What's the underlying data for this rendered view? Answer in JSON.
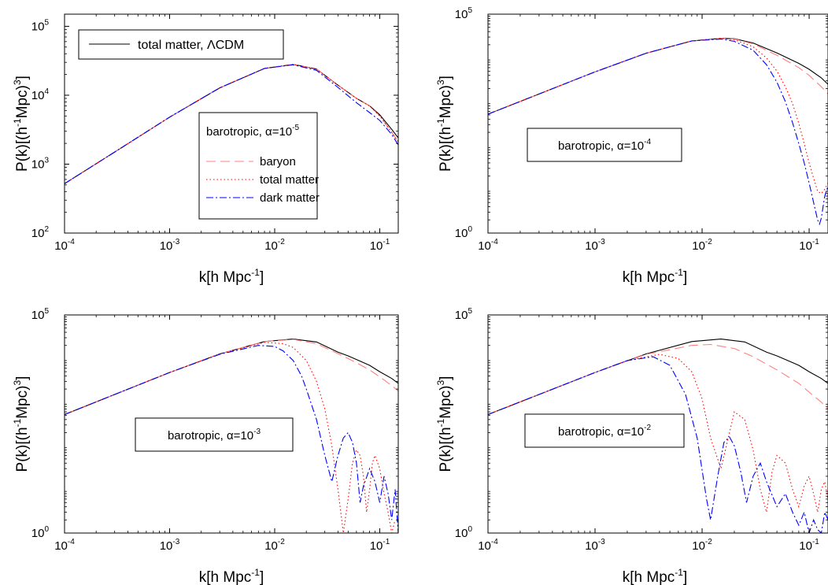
{
  "chart_data": [
    {
      "type": "line",
      "xscale": "log",
      "yscale": "log",
      "xlim": [
        0.0001,
        0.15
      ],
      "ylim": [
        100,
        150000
      ],
      "xlabel": "k[h Mpc",
      "xlabel_sup": "-1",
      "xlabel_end": "]",
      "ylabel": "P(k)[(h",
      "ylabel_sup1": "-1",
      "ylabel_mid": "Mpc)",
      "ylabel_sup2": "3",
      "ylabel_end": "]",
      "xticks": [
        {
          "base": "10",
          "exp": "-4",
          "value": 0.0001
        },
        {
          "base": "10",
          "exp": "-3",
          "value": 0.001
        },
        {
          "base": "10",
          "exp": "-2",
          "value": 0.01
        },
        {
          "base": "10",
          "exp": "-1",
          "value": 0.1
        }
      ],
      "yticks": [
        {
          "base": "10",
          "exp": "2",
          "value": 100
        },
        {
          "base": "10",
          "exp": "3",
          "value": 1000
        },
        {
          "base": "10",
          "exp": "4",
          "value": 10000
        },
        {
          "base": "10",
          "exp": "5",
          "value": 100000
        }
      ],
      "legend_top": {
        "label": "total matter, ΛCDM",
        "placement": "top-left"
      },
      "legend": {
        "title": "barotropic, α=10",
        "title_exp": "-5",
        "placement": "center-right",
        "entries": [
          "baryon",
          "total matter",
          "dark matter"
        ]
      },
      "series": [
        {
          "name": "total matter, ΛCDM",
          "color": "#000000",
          "dash": "solid",
          "x": [
            0.0001,
            0.0003,
            0.001,
            0.003,
            0.008,
            0.015,
            0.025,
            0.04,
            0.05,
            0.06,
            0.08,
            0.1,
            0.13,
            0.15
          ],
          "y": [
            520,
            1500,
            4800,
            12800,
            24500,
            28000,
            24000,
            14000,
            11000,
            9000,
            7000,
            5200,
            3200,
            2400
          ]
        },
        {
          "name": "baryon",
          "color": "#ff8080",
          "dash": "long-dash",
          "x": [
            0.0001,
            0.0003,
            0.001,
            0.003,
            0.008,
            0.015,
            0.025,
            0.04,
            0.05,
            0.06,
            0.08,
            0.1,
            0.13,
            0.15
          ],
          "y": [
            520,
            1500,
            4800,
            12800,
            24500,
            28000,
            24000,
            14000,
            11000,
            9000,
            7000,
            5000,
            2900,
            2100
          ]
        },
        {
          "name": "total matter",
          "color": "#ff0000",
          "dash": "dotted",
          "x": [
            0.0001,
            0.0003,
            0.001,
            0.003,
            0.008,
            0.015,
            0.025,
            0.04,
            0.05,
            0.06,
            0.08,
            0.1,
            0.13,
            0.15
          ],
          "y": [
            520,
            1500,
            4800,
            12800,
            24500,
            28000,
            24000,
            14000,
            11000,
            9000,
            7000,
            5000,
            2900,
            2100
          ]
        },
        {
          "name": "dark matter",
          "color": "#0000ff",
          "dash": "dash-dot",
          "x": [
            0.0001,
            0.0003,
            0.001,
            0.003,
            0.008,
            0.015,
            0.025,
            0.04,
            0.05,
            0.06,
            0.08,
            0.1,
            0.13,
            0.15
          ],
          "y": [
            520,
            1500,
            4800,
            12800,
            24500,
            27600,
            23000,
            13000,
            9800,
            7800,
            5600,
            4300,
            2700,
            1900
          ]
        }
      ]
    },
    {
      "type": "line",
      "xscale": "log",
      "yscale": "log",
      "xlim": [
        0.0001,
        0.15
      ],
      "ylim": [
        1,
        100000
      ],
      "xlabel": "k[h Mpc",
      "xlabel_sup": "-1",
      "xlabel_end": "]",
      "ylabel": "P(k)[(h",
      "ylabel_sup1": "-1",
      "ylabel_mid": "Mpc)",
      "ylabel_sup2": "3",
      "ylabel_end": "]",
      "xticks": [
        {
          "base": "10",
          "exp": "-4",
          "value": 0.0001
        },
        {
          "base": "10",
          "exp": "-3",
          "value": 0.001
        },
        {
          "base": "10",
          "exp": "-2",
          "value": 0.01
        },
        {
          "base": "10",
          "exp": "-1",
          "value": 0.1
        }
      ],
      "yticks": [
        {
          "base": "10",
          "exp": "0",
          "value": 1
        },
        {
          "base": "10",
          "exp": "5",
          "value": 100000
        }
      ],
      "legend": {
        "title": "barotropic, α=10",
        "title_exp": "-4",
        "placement": "center"
      },
      "series": [
        {
          "color": "#000000",
          "dash": "solid",
          "x": [
            0.0001,
            0.001,
            0.003,
            0.008,
            0.015,
            0.02,
            0.03,
            0.05,
            0.08,
            0.1,
            0.13,
            0.15
          ],
          "y": [
            520,
            4800,
            12800,
            24500,
            28000,
            27500,
            22000,
            13000,
            7500,
            5500,
            3500,
            2500
          ]
        },
        {
          "color": "#ff8080",
          "dash": "long-dash",
          "x": [
            0.0001,
            0.001,
            0.003,
            0.008,
            0.015,
            0.02,
            0.03,
            0.05,
            0.08,
            0.1,
            0.13,
            0.15
          ],
          "y": [
            520,
            4800,
            12800,
            24500,
            28000,
            27000,
            21000,
            11500,
            6000,
            4000,
            2200,
            1500
          ]
        },
        {
          "color": "#ff0000",
          "dash": "dotted",
          "x": [
            0.0001,
            0.001,
            0.003,
            0.008,
            0.015,
            0.02,
            0.03,
            0.04,
            0.05,
            0.06,
            0.07,
            0.08,
            0.09,
            0.1,
            0.11,
            0.12,
            0.13,
            0.14,
            0.15
          ],
          "y": [
            520,
            4800,
            12800,
            24500,
            28000,
            26000,
            18000,
            10000,
            5000,
            2200,
            900,
            320,
            110,
            40,
            18,
            9,
            8,
            10,
            14
          ]
        },
        {
          "color": "#0000ff",
          "dash": "dash-dot",
          "x": [
            0.0001,
            0.001,
            0.003,
            0.008,
            0.015,
            0.02,
            0.03,
            0.04,
            0.05,
            0.06,
            0.07,
            0.08,
            0.09,
            0.1,
            0.11,
            0.12,
            0.125,
            0.13,
            0.14,
            0.15
          ],
          "y": [
            520,
            4800,
            12800,
            24500,
            27000,
            24000,
            15000,
            7000,
            2800,
            1000,
            330,
            110,
            40,
            14,
            5,
            2,
            1.6,
            2.2,
            7,
            12
          ]
        }
      ]
    },
    {
      "type": "line",
      "xscale": "log",
      "yscale": "log",
      "xlim": [
        0.0001,
        0.15
      ],
      "ylim": [
        1,
        100000
      ],
      "xlabel": "k[h Mpc",
      "xlabel_sup": "-1",
      "xlabel_end": "]",
      "ylabel": "P(k)[(h",
      "ylabel_sup1": "-1",
      "ylabel_mid": "Mpc)",
      "ylabel_sup2": "3",
      "ylabel_end": "]",
      "xticks": [
        {
          "base": "10",
          "exp": "-4",
          "value": 0.0001
        },
        {
          "base": "10",
          "exp": "-3",
          "value": 0.001
        },
        {
          "base": "10",
          "exp": "-2",
          "value": 0.01
        },
        {
          "base": "10",
          "exp": "-1",
          "value": 0.1
        }
      ],
      "yticks": [
        {
          "base": "10",
          "exp": "0",
          "value": 1
        },
        {
          "base": "10",
          "exp": "5",
          "value": 100000
        }
      ],
      "legend": {
        "title": "barotropic, α=10",
        "title_exp": "-3",
        "placement": "center"
      },
      "series": [
        {
          "color": "#000000",
          "dash": "solid",
          "x": [
            0.0001,
            0.001,
            0.003,
            0.008,
            0.015,
            0.025,
            0.04,
            0.05,
            0.06,
            0.08,
            0.1,
            0.13,
            0.15
          ],
          "y": [
            520,
            4800,
            12800,
            24500,
            28000,
            24000,
            14000,
            11500,
            9500,
            7000,
            5000,
            3500,
            2700
          ]
        },
        {
          "color": "#ff8080",
          "dash": "long-dash",
          "x": [
            0.0001,
            0.001,
            0.003,
            0.008,
            0.015,
            0.025,
            0.04,
            0.05,
            0.06,
            0.08,
            0.1,
            0.13,
            0.15
          ],
          "y": [
            520,
            4800,
            12800,
            24500,
            27500,
            22000,
            13000,
            10000,
            8000,
            5500,
            3800,
            2400,
            1800
          ]
        },
        {
          "color": "#ff0000",
          "dash": "dotted",
          "x": [
            0.0001,
            0.001,
            0.003,
            0.008,
            0.012,
            0.015,
            0.02,
            0.025,
            0.03,
            0.035,
            0.04,
            0.045,
            0.05,
            0.055,
            0.06,
            0.065,
            0.07,
            0.075,
            0.08,
            0.085,
            0.09,
            0.1,
            0.11,
            0.12,
            0.13,
            0.14
          ],
          "y": [
            520,
            4800,
            12800,
            23500,
            22000,
            18000,
            9000,
            3000,
            700,
            100,
            10,
            1,
            6,
            40,
            80,
            60,
            20,
            3,
            10,
            40,
            60,
            30,
            8,
            3,
            1,
            2
          ]
        },
        {
          "color": "#0000ff",
          "dash": "dash-dot",
          "x": [
            0.0001,
            0.001,
            0.003,
            0.007,
            0.01,
            0.012,
            0.015,
            0.018,
            0.02,
            0.025,
            0.03,
            0.035,
            0.04,
            0.045,
            0.05,
            0.055,
            0.06,
            0.065,
            0.07,
            0.08,
            0.09,
            0.1,
            0.11,
            0.12,
            0.13,
            0.14,
            0.15
          ],
          "y": [
            520,
            4800,
            12500,
            20000,
            19000,
            15000,
            9000,
            4000,
            2000,
            400,
            60,
            15,
            60,
            150,
            200,
            120,
            40,
            5,
            12,
            30,
            15,
            5,
            20,
            8,
            2,
            10,
            1
          ]
        }
      ]
    },
    {
      "type": "line",
      "xscale": "log",
      "yscale": "log",
      "xlim": [
        0.0001,
        0.15
      ],
      "ylim": [
        1,
        100000
      ],
      "xlabel": "k[h Mpc",
      "xlabel_sup": "-1",
      "xlabel_end": "]",
      "ylabel": "P(k)[(h",
      "ylabel_sup1": "-1",
      "ylabel_mid": "Mpc)",
      "ylabel_sup2": "3",
      "ylabel_end": "]",
      "xticks": [
        {
          "base": "10",
          "exp": "-4",
          "value": 0.0001
        },
        {
          "base": "10",
          "exp": "-3",
          "value": 0.001
        },
        {
          "base": "10",
          "exp": "-2",
          "value": 0.01
        },
        {
          "base": "10",
          "exp": "-1",
          "value": 0.1
        }
      ],
      "yticks": [
        {
          "base": "10",
          "exp": "0",
          "value": 1
        },
        {
          "base": "10",
          "exp": "5",
          "value": 100000
        }
      ],
      "legend": {
        "title": "barotropic, α=10",
        "title_exp": "-2",
        "placement": "center"
      },
      "series": [
        {
          "color": "#000000",
          "dash": "solid",
          "x": [
            0.0001,
            0.001,
            0.003,
            0.008,
            0.015,
            0.025,
            0.04,
            0.05,
            0.06,
            0.08,
            0.1,
            0.13,
            0.15
          ],
          "y": [
            520,
            4800,
            12800,
            24500,
            28000,
            24000,
            14000,
            11500,
            9500,
            7000,
            5000,
            3500,
            2700
          ]
        },
        {
          "color": "#ff8080",
          "dash": "long-dash",
          "x": [
            0.0001,
            0.001,
            0.003,
            0.008,
            0.012,
            0.02,
            0.03,
            0.05,
            0.08,
            0.1,
            0.13,
            0.15
          ],
          "y": [
            520,
            4800,
            12500,
            20000,
            21000,
            17000,
            11000,
            5500,
            2700,
            1700,
            1000,
            700
          ]
        },
        {
          "color": "#ff0000",
          "dash": "dotted",
          "x": [
            0.0001,
            0.001,
            0.002,
            0.004,
            0.006,
            0.008,
            0.01,
            0.012,
            0.015,
            0.018,
            0.02,
            0.025,
            0.03,
            0.035,
            0.04,
            0.045,
            0.05,
            0.06,
            0.07,
            0.08,
            0.09,
            0.1,
            0.11,
            0.12,
            0.13,
            0.14,
            0.15
          ],
          "y": [
            520,
            4800,
            9000,
            12500,
            10000,
            5000,
            1200,
            150,
            30,
            200,
            600,
            400,
            80,
            10,
            3,
            25,
            60,
            40,
            10,
            4,
            12,
            20,
            8,
            3,
            10,
            15,
            6
          ]
        },
        {
          "color": "#0000ff",
          "dash": "dash-dot",
          "x": [
            0.0001,
            0.001,
            0.002,
            0.0035,
            0.005,
            0.007,
            0.009,
            0.011,
            0.012,
            0.014,
            0.016,
            0.018,
            0.02,
            0.023,
            0.026,
            0.03,
            0.035,
            0.04,
            0.05,
            0.06,
            0.07,
            0.08,
            0.09,
            0.1,
            0.11,
            0.12,
            0.13,
            0.14,
            0.15
          ],
          "y": [
            520,
            4800,
            9000,
            11000,
            7000,
            1500,
            150,
            6,
            2,
            20,
            120,
            160,
            100,
            25,
            5,
            20,
            40,
            15,
            4,
            8,
            3,
            1.5,
            3,
            1,
            2,
            1.2,
            1,
            3,
            2
          ]
        }
      ]
    }
  ]
}
